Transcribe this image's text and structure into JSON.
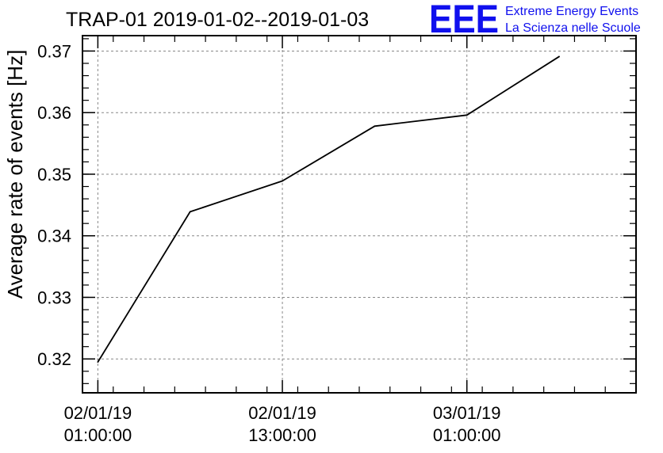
{
  "chart_data": {
    "type": "line",
    "title": "TRAP-01 2019-01-02--2019-01-03",
    "xlabel": "",
    "ylabel": "Average rate of events [Hz]",
    "x": [
      "2019-01-02 01:00:00",
      "2019-01-02 07:00:00",
      "2019-01-02 13:00:00",
      "2019-01-02 19:00:00",
      "2019-01-03 01:00:00",
      "2019-01-03 07:00:00"
    ],
    "series": [
      {
        "values": [
          0.3195,
          0.3439,
          0.3489,
          0.3578,
          0.3596,
          0.3691
        ]
      }
    ],
    "xlim": [
      "2019-01-02 00:00:00",
      "2019-01-03 12:00:00"
    ],
    "ylim": [
      0.3145,
      0.3725
    ],
    "yticks": [
      0.32,
      0.33,
      0.34,
      0.35,
      0.36,
      0.37
    ],
    "ytick_labels": [
      "0.32",
      "0.33",
      "0.34",
      "0.35",
      "0.36",
      "0.37"
    ],
    "xticks": [
      {
        "at": "2019-01-02 01:00:00",
        "line1": "02/01/19",
        "line2": "01:00:00"
      },
      {
        "at": "2019-01-02 13:00:00",
        "line1": "02/01/19",
        "line2": "13:00:00"
      },
      {
        "at": "2019-01-03 01:00:00",
        "line1": "03/01/19",
        "line2": "01:00:00"
      }
    ],
    "grid": true,
    "line_color": "#000000",
    "grid_color": "#888888"
  },
  "logo": {
    "text": "EEE",
    "line1": "Extreme Energy Events",
    "line2": "La Scienza nelle Scuole",
    "color": "#1010ee"
  }
}
